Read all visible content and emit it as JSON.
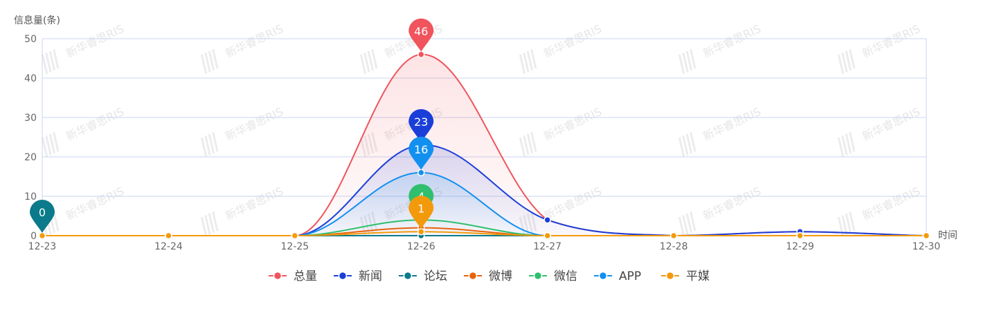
{
  "watermark": {
    "text": "新华睿思RIS",
    "color": "#e4e4e4"
  },
  "chart_data": {
    "type": "line",
    "smooth": true,
    "ylabel": "信息量(条)",
    "xlabel": "时间",
    "ylim": [
      0,
      50
    ],
    "yticks": [
      0,
      10,
      20,
      30,
      40,
      50
    ],
    "grid": true,
    "legend_position": "bottom",
    "categories": [
      "12-23",
      "12-24",
      "12-25",
      "12-26",
      "12-27",
      "12-28",
      "12-29",
      "12-30"
    ],
    "series": [
      {
        "name": "总量",
        "color": "#f0545c",
        "values": [
          0,
          0,
          0,
          46,
          4,
          0,
          1,
          0
        ],
        "area": true,
        "pin_label": "46"
      },
      {
        "name": "新闻",
        "color": "#1a3fd8",
        "values": [
          0,
          0,
          0,
          23,
          4,
          0,
          1,
          0
        ],
        "area": true,
        "pin_label": "23"
      },
      {
        "name": "论坛",
        "color": "#0b7a8a",
        "values": [
          0,
          0,
          0,
          0,
          0,
          0,
          0,
          0
        ],
        "area": false,
        "pin_label": "0"
      },
      {
        "name": "微博",
        "color": "#e8620c",
        "values": [
          0,
          0,
          0,
          2,
          0,
          0,
          0,
          0
        ],
        "area": false,
        "pin_label": ""
      },
      {
        "name": "微信",
        "color": "#2fbf6e",
        "values": [
          0,
          0,
          0,
          4,
          0,
          0,
          0,
          0
        ],
        "area": false,
        "pin_label": "4"
      },
      {
        "name": "APP",
        "color": "#1290f0",
        "values": [
          0,
          0,
          0,
          16,
          0,
          0,
          0,
          0
        ],
        "area": true,
        "pin_label": "16"
      },
      {
        "name": "平媒",
        "color": "#f39a0c",
        "values": [
          0,
          0,
          0,
          1,
          0,
          0,
          0,
          0
        ],
        "area": false,
        "pin_label": "1"
      }
    ]
  }
}
